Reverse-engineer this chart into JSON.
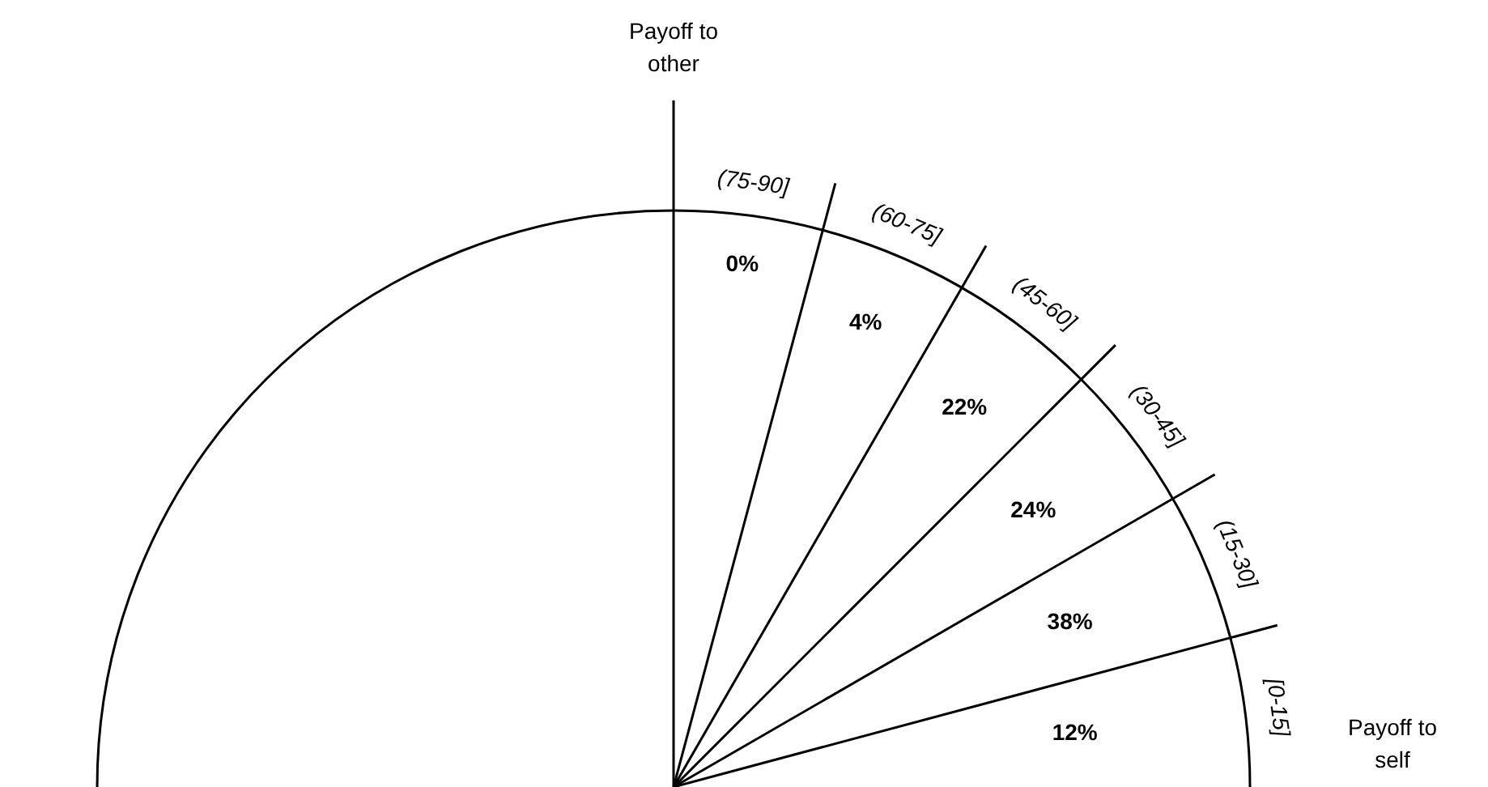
{
  "chart_data": {
    "type": "other",
    "xlabel": "Payoff to self",
    "ylabel": "Payoff to other",
    "categories": [
      "[0-15]",
      "(15-30]",
      "(30-45]",
      "(45-60]",
      "(60-75]",
      "(75-90]"
    ],
    "values": [
      12,
      38,
      24,
      22,
      4,
      0
    ],
    "value_labels": [
      "12%",
      "38%",
      "24%",
      "22%",
      "4%",
      "0%"
    ]
  }
}
